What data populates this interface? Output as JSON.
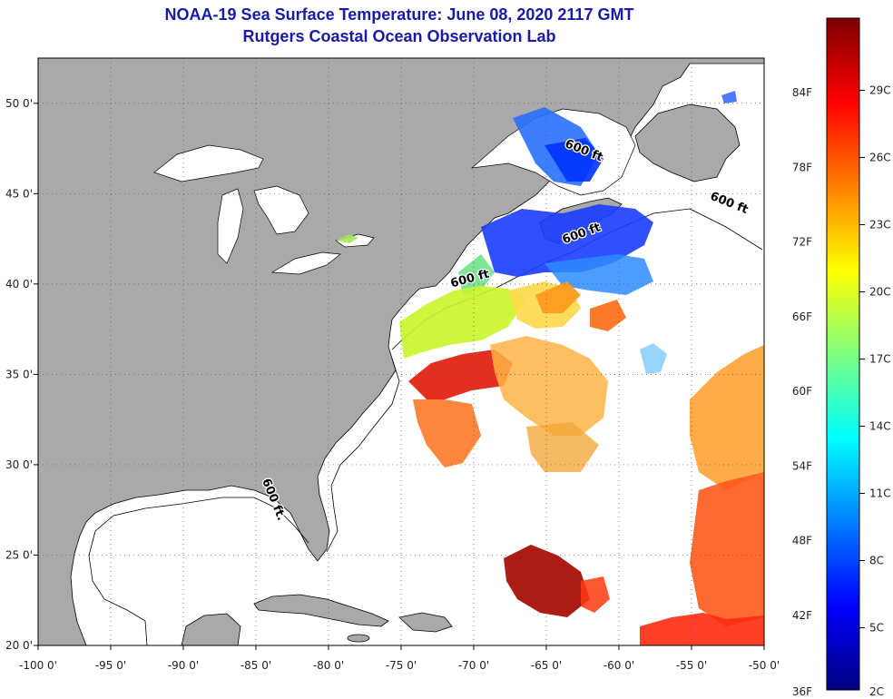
{
  "title": {
    "line1": "NOAA-19 Sea Surface Temperature:  June 08, 2020 2117 GMT",
    "line2": "Rutgers Coastal Ocean Observation Lab"
  },
  "map": {
    "lon_range": [
      -100,
      -50
    ],
    "lat_range": [
      20,
      52.5
    ],
    "lon_ticks": [
      {
        "value": -100,
        "label": "-100 0'"
      },
      {
        "value": -95,
        "label": "-95 0'"
      },
      {
        "value": -90,
        "label": "-90 0'"
      },
      {
        "value": -85,
        "label": "-85 0'"
      },
      {
        "value": -80,
        "label": "-80 0'"
      },
      {
        "value": -75,
        "label": "-75 0'"
      },
      {
        "value": -70,
        "label": "-70 0'"
      },
      {
        "value": -65,
        "label": "-65 0'"
      },
      {
        "value": -60,
        "label": "-60 0'"
      },
      {
        "value": -55,
        "label": "-55 0'"
      },
      {
        "value": -50,
        "label": "-50 0'"
      }
    ],
    "lat_ticks": [
      {
        "value": 50,
        "label": "50 0'"
      },
      {
        "value": 45,
        "label": "45 0'"
      },
      {
        "value": 40,
        "label": "40 0'"
      },
      {
        "value": 35,
        "label": "35 0'"
      },
      {
        "value": 30,
        "label": "30 0'"
      },
      {
        "value": 25,
        "label": "25 0'"
      },
      {
        "value": 20,
        "label": "20 0'"
      }
    ],
    "contour_labels": [
      {
        "text": "600 ft",
        "lon": -62.5,
        "lat": 47.2,
        "rot": 22
      },
      {
        "text": "600 ft",
        "lon": -52.5,
        "lat": 44.3,
        "rot": 22
      },
      {
        "text": "600 ft",
        "lon": -62.5,
        "lat": 42.6,
        "rot": -20
      },
      {
        "text": "600 ft",
        "lon": -70.2,
        "lat": 40.1,
        "rot": -15
      },
      {
        "text": "600 ft.",
        "lon": -84.0,
        "lat": 28.0,
        "rot": 68
      }
    ],
    "colors": {
      "land": "#a9a9a9",
      "ocean": "#ffffff",
      "coast": "#000000"
    }
  },
  "colorbar": {
    "label_min": "36F",
    "label_min_c": "2C",
    "f_labels": [
      "84F",
      "78F",
      "72F",
      "66F",
      "60F",
      "54F",
      "48F",
      "42F"
    ],
    "c_labels": [
      "29C",
      "26C",
      "23C",
      "20C",
      "17C",
      "14C",
      "11C",
      "8C",
      "5C"
    ],
    "stops": [
      "#00007f",
      "#0000ff",
      "#007fff",
      "#00ffff",
      "#7fff7f",
      "#ffff00",
      "#ff7f00",
      "#ff0000",
      "#7f0000"
    ]
  }
}
